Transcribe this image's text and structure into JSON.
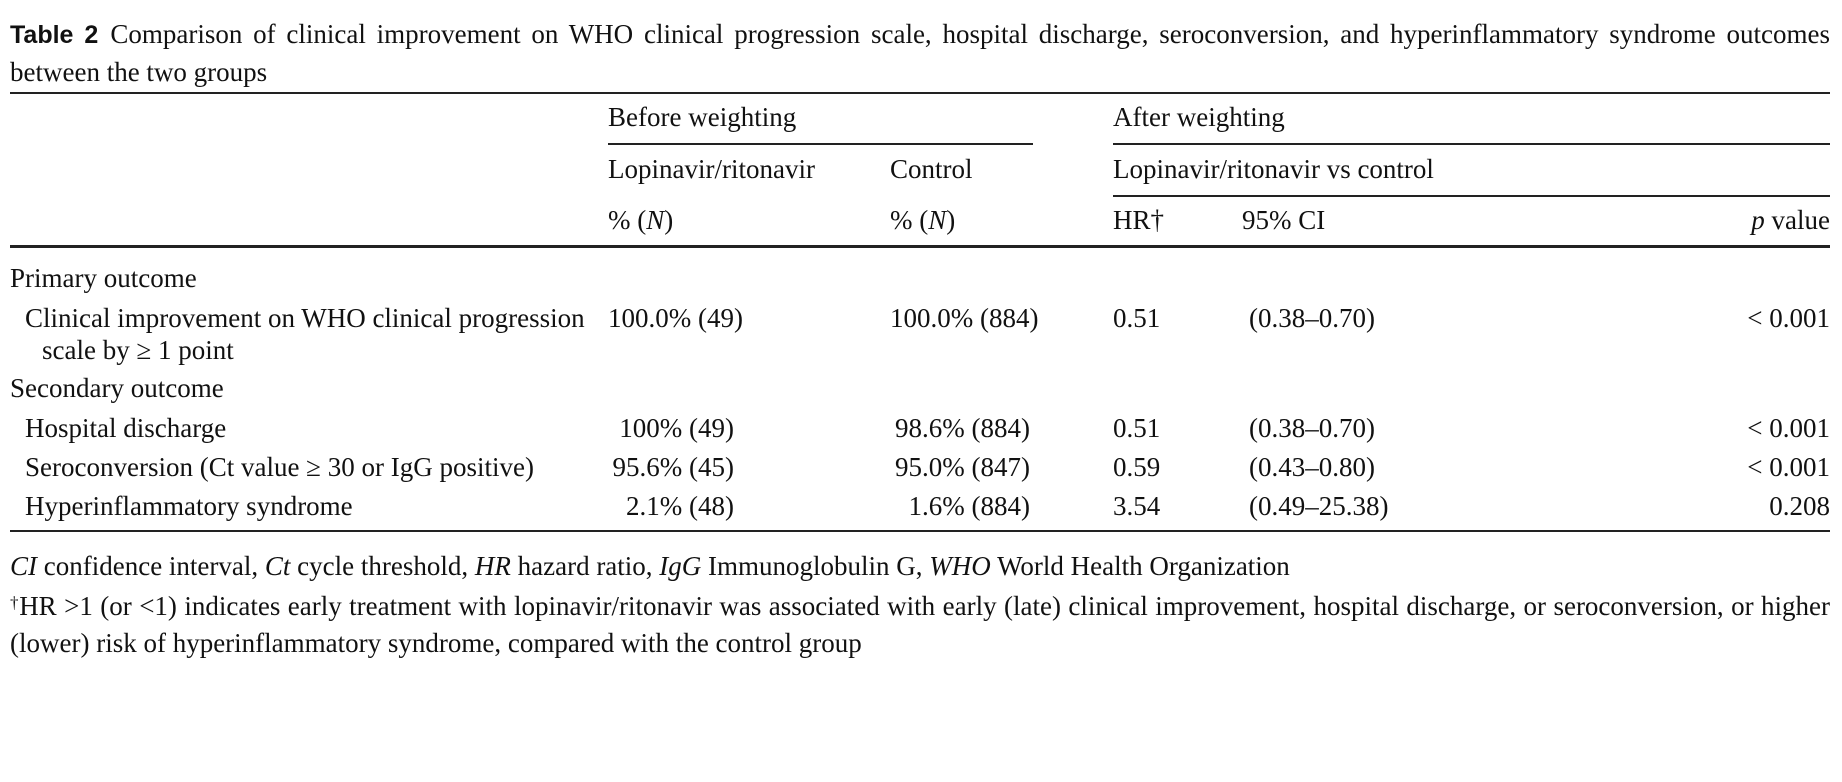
{
  "caption": {
    "label": "Table 2",
    "text": "Comparison of clinical improvement on WHO clinical progression scale, hospital discharge, seroconversion, and hyperinflammatory syndrome outcomes between the two groups"
  },
  "header": {
    "before_weighting": "Before weighting",
    "after_weighting": "After weighting",
    "lopinavir": "Lopinavir/ritonavir",
    "control": "Control",
    "lpv_vs_control": "Lopinavir/ritonavir vs control",
    "pct_n_1": "% (N)",
    "pct_n_2": "% (N)",
    "hr": "HR†",
    "ci": "95% CI",
    "p_value": "p value"
  },
  "sections": {
    "primary": "Primary outcome",
    "secondary": "Secondary outcome"
  },
  "rows": [
    {
      "name_line1": "Clinical improvement on WHO clinical progression",
      "name_line2": "scale by ≥ 1 point",
      "lpv": "100.0% (49)",
      "control": "100.0% (884)",
      "hr": "0.51",
      "ci": "(0.38–0.70)",
      "p": "< 0.001"
    },
    {
      "name": "Hospital discharge",
      "lpv": "100% (49)",
      "control": "98.6% (884)",
      "hr": "0.51",
      "ci": "(0.38–0.70)",
      "p": "< 0.001"
    },
    {
      "name": "Seroconversion (Ct value ≥ 30 or IgG positive)",
      "lpv": "95.6% (45)",
      "control": "95.0% (847)",
      "hr": "0.59",
      "ci": "(0.43–0.80)",
      "p": "< 0.001"
    },
    {
      "name": "Hyperinflammatory syndrome",
      "lpv": "2.1% (48)",
      "control": "1.6% (884)",
      "hr": "3.54",
      "ci": "(0.49–25.38)",
      "p": "0.208"
    }
  ],
  "footnotes": {
    "abbreviations": [
      {
        "abbr": "CI",
        "text": "confidence interval"
      },
      {
        "abbr": "Ct",
        "text": "cycle threshold"
      },
      {
        "abbr": "HR",
        "text": "hazard ratio"
      },
      {
        "abbr": "IgG",
        "text": "Immunoglobulin G"
      },
      {
        "abbr": "WHO",
        "text": "World Health Organization"
      }
    ],
    "dagger_mark": "†",
    "dagger_text": "HR >1 (or <1) indicates early treatment with lopinavir/ritonavir was associated with early (late) clinical improvement, hospital discharge, or seroconversion, or higher (lower) risk of hyperinflammatory syndrome, compared with the control group"
  }
}
